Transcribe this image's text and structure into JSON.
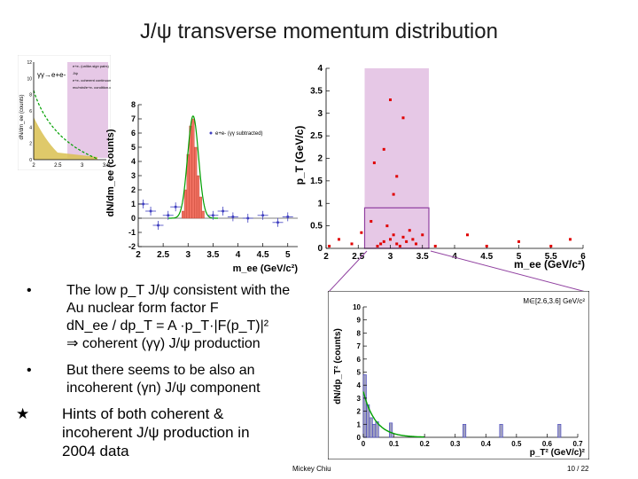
{
  "slide": {
    "title": "J/ψ transverse momentum distribution",
    "footer_author": "Mickey Chiu",
    "footer_page": "10 / 22"
  },
  "bullets": [
    {
      "marker": "•",
      "lines": [
        "The low p_T J/ψ consistent with the",
        "Au nuclear form factor F",
        "dN_ee / dp_T = A ·p_T·|F(p_T)|²",
        "⇒ coherent (γγ) J/ψ production"
      ]
    },
    {
      "marker": "•",
      "lines": [
        "But there seems to be also an",
        "incoherent (γn) J/ψ component"
      ]
    }
  ],
  "star_bullet": {
    "marker": "★",
    "lines": [
      "Hints of both coherent &",
      "incoherent J/ψ production in",
      "2004 data"
    ]
  },
  "colors": {
    "pink_band": "#e6c8e6",
    "hist_red": "#f07060",
    "green_fit": "#00a000",
    "points_red": "#e00000",
    "blue_points": "#4040c0",
    "purple_line": "#9040a0"
  },
  "chart_data": [
    {
      "type": "area",
      "xlabel": "",
      "ylabel": "dN/dm_ee (counts)",
      "xlim": [
        2,
        3.5
      ],
      "ylim": [
        0,
        12
      ],
      "xticks": [
        "2",
        "2.5",
        "3",
        "3.5"
      ],
      "yticks": [
        "0",
        "2",
        "4",
        "6",
        "8",
        "10",
        "12"
      ],
      "legend": [
        "e+e- (unlike-sign pairs)",
        "J/ψ",
        "e+e- coherent continuum",
        "mc/mini/e+e- condition.com"
      ],
      "annotation": "γγ→e+e-",
      "legend_placement": "top-right"
    },
    {
      "type": "bar",
      "xlabel": "m_ee (GeV/c²)",
      "ylabel": "dN/dm_ee (counts)",
      "xlim": [
        2,
        5.2
      ],
      "ylim": [
        -2,
        8
      ],
      "xticks": [
        "2",
        "2.5",
        "3",
        "3.5",
        "4",
        "4.5",
        "5"
      ],
      "yticks": [
        "-2",
        "-1",
        "0",
        "1",
        "2",
        "3",
        "4",
        "5",
        "6",
        "7",
        "8"
      ],
      "legend": [
        "e+e- (γγ subtracted)"
      ],
      "legend_placement": "top-right",
      "bins_x": [
        2.9,
        2.95,
        3.0,
        3.05,
        3.1,
        3.15,
        3.2,
        3.25,
        3.3
      ],
      "bins_values": [
        0.5,
        2.0,
        4.5,
        6.5,
        7.0,
        5.0,
        3.0,
        1.5,
        0.5
      ],
      "points_x": [
        2.1,
        2.25,
        2.4,
        2.6,
        2.75,
        3.5,
        3.7,
        3.9,
        4.2,
        4.5,
        4.8,
        5.0
      ],
      "points_y": [
        1.0,
        0.5,
        -0.5,
        0.2,
        0.8,
        0.2,
        0.5,
        0.1,
        0.0,
        0.2,
        -0.3,
        0.1
      ],
      "gaussian": {
        "mean": 3.1,
        "peak": 7.2
      }
    },
    {
      "type": "scatter",
      "xlabel": "m_ee (GeV/c²)",
      "ylabel": "p_T (GeV/c)",
      "xlim": [
        2,
        6
      ],
      "ylim": [
        0,
        4
      ],
      "xticks": [
        "2",
        "2.5",
        "3",
        "3.5",
        "4",
        "4.5",
        "5",
        "5.5",
        "6"
      ],
      "yticks": [
        "0",
        "0.5",
        "1",
        "1.5",
        "2",
        "2.5",
        "3",
        "3.5",
        "4"
      ],
      "band_x": [
        2.6,
        3.6
      ],
      "box": {
        "x": [
          2.6,
          3.6
        ],
        "y": [
          0,
          0.9
        ]
      },
      "x": [
        2.05,
        2.2,
        2.4,
        2.55,
        2.7,
        2.8,
        2.85,
        2.9,
        2.95,
        3.0,
        3.05,
        3.1,
        3.15,
        3.2,
        3.25,
        3.3,
        3.35,
        3.4,
        3.5,
        2.9,
        3.0,
        3.1,
        3.2,
        3.05,
        2.75,
        4.5,
        5.0,
        5.5,
        5.8,
        4.2,
        3.7
      ],
      "y": [
        0.05,
        0.2,
        0.1,
        0.35,
        0.6,
        0.05,
        0.1,
        0.15,
        0.5,
        0.2,
        0.3,
        0.1,
        0.05,
        0.25,
        0.15,
        0.4,
        0.2,
        0.1,
        0.3,
        2.2,
        3.3,
        1.6,
        2.9,
        1.2,
        1.9,
        0.05,
        0.15,
        0.05,
        0.2,
        0.3,
        0.05
      ]
    },
    {
      "type": "bar",
      "xlabel": "p_T² (GeV/c)²",
      "ylabel": "dN/dp_T² (counts)",
      "xlim": [
        0,
        0.7
      ],
      "ylim": [
        0,
        10
      ],
      "xticks": [
        "0",
        "0.1",
        "0.2",
        "0.3",
        "0.4",
        "0.5",
        "0.6",
        "0.7"
      ],
      "yticks": [
        "0",
        "1",
        "2",
        "3",
        "4",
        "5",
        "6",
        "7",
        "8",
        "9",
        "10"
      ],
      "legend": [
        "M∈[2.6,3.6] GeV/c²"
      ],
      "legend_placement": "top-right",
      "bins_x": [
        0.005,
        0.015,
        0.025,
        0.035,
        0.045,
        0.09,
        0.33,
        0.45,
        0.64
      ],
      "bins_values": [
        4.8,
        2.5,
        1.5,
        1.0,
        1.2,
        1.1,
        1.0,
        1.0,
        1.0
      ],
      "fit": {
        "type": "exponential",
        "norm": 3.5,
        "slope": 25
      }
    }
  ]
}
